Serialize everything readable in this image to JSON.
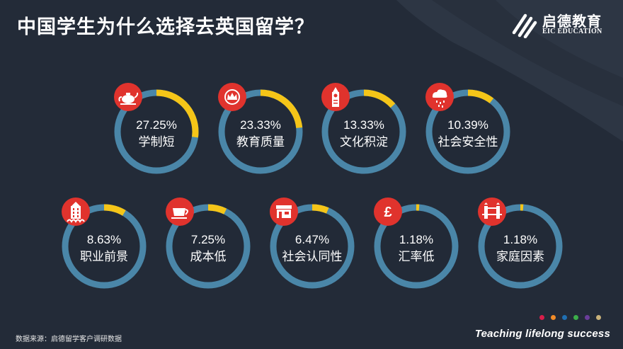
{
  "header": {
    "title": "中国学生为什么选择去英国留学？"
  },
  "logo": {
    "name_cn": "启德教育",
    "name_en": "EIC EDUCATION"
  },
  "colors": {
    "background": "#232b38",
    "ring_track": "#4a86a8",
    "ring_value": "#f5c518",
    "ring_inner": "#222a37",
    "icon_badge": "#e0332d"
  },
  "chart_data": {
    "type": "donut-grid",
    "title": "中国学生为什么选择去英国留学？",
    "items": [
      {
        "label": "学制短",
        "value": 27.25,
        "value_label": "27.25%",
        "icon": "teapot-icon"
      },
      {
        "label": "教育质量",
        "value": 23.33,
        "value_label": "23.33%",
        "icon": "crown-icon"
      },
      {
        "label": "文化积淀",
        "value": 13.33,
        "value_label": "13.33%",
        "icon": "big-ben-icon"
      },
      {
        "label": "社会安全性",
        "value": 10.39,
        "value_label": "10.39%",
        "icon": "rain-cloud-icon"
      },
      {
        "label": "职业前景",
        "value": 8.63,
        "value_label": "8.63%",
        "icon": "building-icon"
      },
      {
        "label": "成本低",
        "value": 7.25,
        "value_label": "7.25%",
        "icon": "teacup-icon"
      },
      {
        "label": "社会认同性",
        "value": 6.47,
        "value_label": "6.47%",
        "icon": "shop-icon"
      },
      {
        "label": "汇率低",
        "value": 1.18,
        "value_label": "1.18%",
        "icon": "pound-icon"
      },
      {
        "label": "家庭因素",
        "value": 1.18,
        "value_label": "1.18%",
        "icon": "tower-bridge-icon"
      }
    ]
  },
  "footer": {
    "source": "数据来源：启德留学客户调研数据",
    "slogan": "Teaching lifelong success",
    "dot_colors": [
      "#d81e4a",
      "#f28c28",
      "#1f6fb2",
      "#3cae4a",
      "#6a3d9a",
      "#c9b27a"
    ]
  }
}
